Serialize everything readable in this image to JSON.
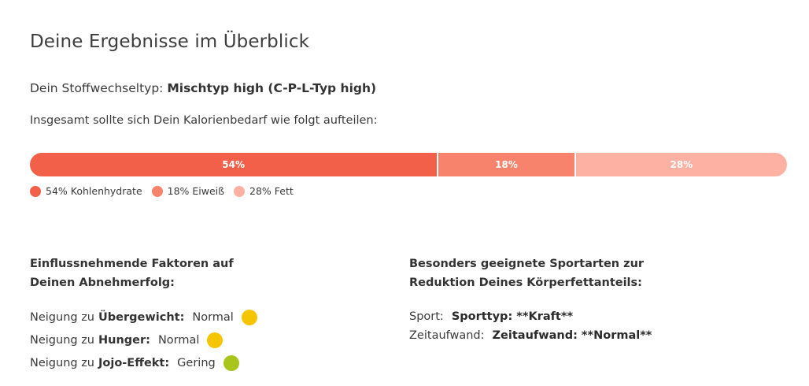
{
  "page": {
    "title": "Deine Ergebnisse im Überblick"
  },
  "metabolism": {
    "label": "Dein Stoffwechseltyp:",
    "value": "Mischtyp high (C-P-L-Typ high)"
  },
  "split_intro": "Insgesamt sollte sich Dein Kalorienbedarf wie folgt aufteilen:",
  "macro_split": {
    "segments": [
      {
        "percent": 54,
        "label": "54%",
        "legend": "54% Kohlenhydrate",
        "color": "#f2604a"
      },
      {
        "percent": 18,
        "label": "18%",
        "legend": "18% Eiweiß",
        "color": "#f8836d"
      },
      {
        "percent": 28,
        "label": "28%",
        "legend": "28% Fett",
        "color": "#fcb1a3"
      }
    ]
  },
  "factors": {
    "heading": "Einflussnehmende Faktoren auf Deinen Abnehmerfolg:",
    "prefix": "Neigung zu",
    "items": [
      {
        "name": "Übergewicht:",
        "value": "Normal",
        "color": "#f5c500",
        "icon": "status-dot"
      },
      {
        "name": "Hunger:",
        "value": "Normal",
        "color": "#f5c500",
        "icon": "status-dot"
      },
      {
        "name": "Jojo-Effekt:",
        "value": "Gering",
        "color": "#a9c41a",
        "icon": "status-dot"
      }
    ]
  },
  "sports": {
    "heading": "Besonders geeignete Sportarten zur Reduktion Deines Körperfettanteils:",
    "items": [
      {
        "label": "Sport:",
        "value": "Sporttyp: **Kraft**"
      },
      {
        "label": "Zeitaufwand:",
        "value": "Zeitaufwand: **Normal**"
      }
    ]
  }
}
